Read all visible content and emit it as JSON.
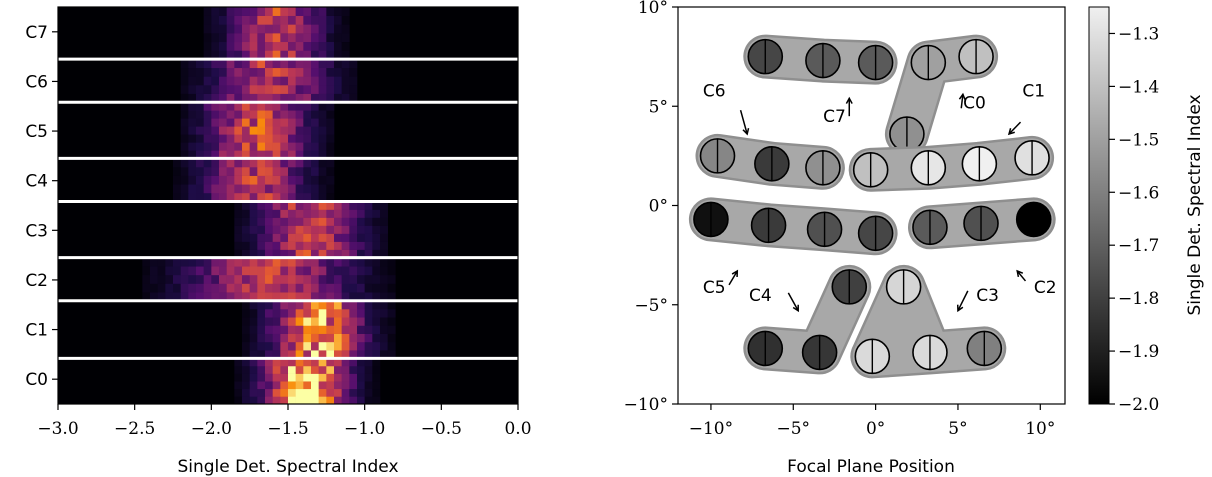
{
  "chart_data": [
    {
      "type": "heatmap",
      "xlabel": "Single Det. Spectral Index",
      "xlim": [
        -3.0,
        0.0
      ],
      "x_tick_labels": [
        "−3.0",
        "−2.5",
        "−2.0",
        "−1.5",
        "−1.0",
        "−0.5",
        "0.0"
      ],
      "x_tick_values": [
        -3.0,
        -2.5,
        -2.0,
        -1.5,
        -1.0,
        -0.5,
        0.0
      ],
      "y_categories": [
        "C0",
        "C1",
        "C2",
        "C3",
        "C4",
        "C5",
        "C6",
        "C7"
      ],
      "colormap": "inferno",
      "row_distributions": [
        {
          "name": "C0",
          "mean": -1.38,
          "sd": 0.18,
          "peak": 1.0
        },
        {
          "name": "C1",
          "mean": -1.3,
          "sd": 0.2,
          "peak": 0.82
        },
        {
          "name": "C2",
          "mean": -1.62,
          "sd": 0.35,
          "peak": 0.58
        },
        {
          "name": "C3",
          "mean": -1.35,
          "sd": 0.22,
          "peak": 0.62
        },
        {
          "name": "C4",
          "mean": -1.72,
          "sd": 0.22,
          "peak": 0.6
        },
        {
          "name": "C5",
          "mean": -1.7,
          "sd": 0.22,
          "peak": 0.66
        },
        {
          "name": "C6",
          "mean": -1.62,
          "sd": 0.25,
          "peak": 0.58
        },
        {
          "name": "C7",
          "mean": -1.58,
          "sd": 0.2,
          "peak": 0.6
        }
      ],
      "row_bounds": [
        [
          -0.5,
          0.42
        ],
        [
          0.42,
          1.58
        ],
        [
          1.58,
          2.45
        ],
        [
          2.45,
          3.58
        ],
        [
          3.58,
          4.45
        ],
        [
          4.45,
          5.58
        ],
        [
          5.58,
          6.45
        ],
        [
          6.45,
          7.5
        ]
      ],
      "separators": [
        0.42,
        1.58,
        2.45,
        3.58,
        4.45,
        5.58,
        6.45
      ]
    },
    {
      "type": "scatter",
      "xlabel": "Focal Plane Position",
      "xlim": [
        -12,
        11.5
      ],
      "ylim": [
        -10,
        10
      ],
      "x_tick_labels": [
        "−10°",
        "−5°",
        "0°",
        "5°",
        "10°"
      ],
      "x_tick_values": [
        -10,
        -5,
        0,
        5,
        10
      ],
      "y_tick_labels": [
        "−10°",
        "−5°",
        "0°",
        "5°",
        "10°"
      ],
      "y_tick_values": [
        -10,
        -5,
        0,
        5,
        10
      ],
      "colorbar": {
        "label": "Single Det. Spectral Index",
        "range": [
          -2.0,
          -1.25
        ],
        "tick_values": [
          -1.3,
          -1.4,
          -1.5,
          -1.6,
          -1.7,
          -1.8,
          -1.9,
          -2.0
        ],
        "tick_labels": [
          "−1.3",
          "−1.4",
          "−1.5",
          "−1.6",
          "−1.7",
          "−1.8",
          "−1.9",
          "−2.0"
        ]
      },
      "modules": [
        {
          "name": "C7",
          "detectors": [
            {
              "x": -6.7,
              "y": 7.5,
              "left": -1.78,
              "right": -1.78
            },
            {
              "x": -3.2,
              "y": 7.3,
              "left": -1.72,
              "right": -1.72
            },
            {
              "x": 0.0,
              "y": 7.2,
              "left": -1.72,
              "right": -1.72
            }
          ]
        },
        {
          "name": "C0",
          "detectors": [
            {
              "x": 1.9,
              "y": 3.6,
              "left": -1.55,
              "right": -1.55
            },
            {
              "x": 3.2,
              "y": 7.2,
              "left": -1.5,
              "right": -1.5
            },
            {
              "x": 6.1,
              "y": 7.5,
              "left": -1.4,
              "right": -1.4
            }
          ]
        },
        {
          "name": "C6",
          "detectors": [
            {
              "x": -9.6,
              "y": 2.5,
              "left": -1.58,
              "right": -1.58
            },
            {
              "x": -6.3,
              "y": 2.1,
              "left": -1.82,
              "right": -1.82
            },
            {
              "x": -3.2,
              "y": 1.9,
              "left": -1.55,
              "right": -1.55
            }
          ]
        },
        {
          "name": "C1",
          "detectors": [
            {
              "x": -0.3,
              "y": 1.8,
              "left": -1.4,
              "right": -1.4
            },
            {
              "x": 3.2,
              "y": 1.9,
              "left": -1.28,
              "right": -1.28
            },
            {
              "x": 6.3,
              "y": 2.1,
              "left": -1.25,
              "right": -1.25
            },
            {
              "x": 9.5,
              "y": 2.4,
              "left": -1.3,
              "right": -1.3
            }
          ]
        },
        {
          "name": "C5",
          "detectors": [
            {
              "x": -10.0,
              "y": -0.7,
              "left": -1.95,
              "right": -1.95
            },
            {
              "x": -6.5,
              "y": -1.0,
              "left": -1.82,
              "right": -1.82
            },
            {
              "x": -3.1,
              "y": -1.2,
              "left": -1.75,
              "right": -1.75
            },
            {
              "x": 0.0,
              "y": -1.4,
              "left": -1.78,
              "right": -1.78
            }
          ]
        },
        {
          "name": "C2",
          "detectors": [
            {
              "x": 3.3,
              "y": -1.1,
              "left": -1.72,
              "right": -1.72
            },
            {
              "x": 6.4,
              "y": -0.9,
              "left": -1.75,
              "right": -1.75
            },
            {
              "x": 9.6,
              "y": -0.7,
              "left": -2.0,
              "right": -2.0
            }
          ]
        },
        {
          "name": "C4",
          "detectors": [
            {
              "x": -6.7,
              "y": -7.2,
              "left": -1.85,
              "right": -1.85
            },
            {
              "x": -3.4,
              "y": -7.4,
              "left": -1.83,
              "right": -1.83
            },
            {
              "x": -1.6,
              "y": -4.1,
              "left": -1.8,
              "right": -1.8
            }
          ]
        },
        {
          "name": "C3",
          "detectors": [
            {
              "x": 1.7,
              "y": -4.1,
              "left": -1.33,
              "right": -1.33
            },
            {
              "x": -0.2,
              "y": -7.6,
              "left": -1.32,
              "right": -1.32
            },
            {
              "x": 3.3,
              "y": -7.4,
              "left": -1.32,
              "right": -1.32
            },
            {
              "x": 6.6,
              "y": -7.2,
              "left": -1.6,
              "right": -1.6
            }
          ]
        }
      ],
      "annotations": [
        {
          "text": "C6",
          "x": -9.8,
          "y": 5.8
        },
        {
          "text": "C7",
          "x": -2.5,
          "y": 4.5
        },
        {
          "text": "C0",
          "x": 6.0,
          "y": 5.2
        },
        {
          "text": "C1",
          "x": 9.6,
          "y": 5.8
        },
        {
          "text": "C5",
          "x": -9.8,
          "y": -4.1
        },
        {
          "text": "C4",
          "x": -7.0,
          "y": -4.5
        },
        {
          "text": "C3",
          "x": 6.8,
          "y": -4.5
        },
        {
          "text": "C2",
          "x": 10.3,
          "y": -4.1
        }
      ]
    }
  ]
}
